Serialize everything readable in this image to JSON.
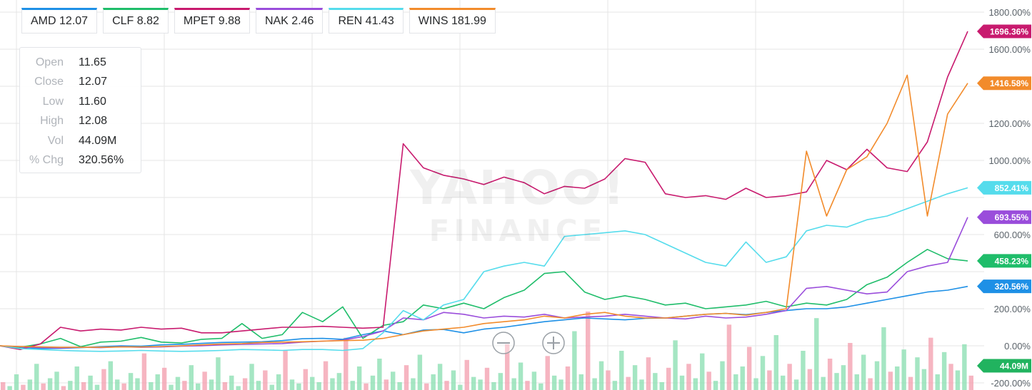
{
  "chart_data": {
    "type": "line",
    "y_axis": {
      "min": -200,
      "max": 1800,
      "unit": "%",
      "ticks": [
        -200,
        0,
        200,
        400,
        600,
        800,
        1000,
        1200,
        1400,
        1600,
        1800
      ],
      "tick_labels": [
        "-200.00%",
        "0.00%",
        "200.00%",
        "",
        "600.00%",
        "",
        "1000.00%",
        "1200.00%",
        "",
        "1600.00%",
        "1800.00%"
      ],
      "position": "right"
    },
    "grid": true,
    "series": [
      {
        "name": "AMD",
        "quote": "12.07",
        "color": "#1e90e6",
        "end_label": "320.56%",
        "values": [
          0,
          -8,
          -15,
          -14,
          -10,
          -5,
          0,
          -2,
          5,
          8,
          13,
          18,
          20,
          22,
          28,
          38,
          40,
          35,
          60,
          80,
          60,
          85,
          88,
          70,
          90,
          100,
          115,
          130,
          140,
          150,
          145,
          140,
          148,
          150,
          160,
          170,
          175,
          168,
          180,
          190,
          200,
          200,
          210,
          230,
          250,
          270,
          290,
          300,
          320.56
        ]
      },
      {
        "name": "CLF",
        "quote": "8.82",
        "color": "#1fbd6a",
        "end_label": "458.23%",
        "values": [
          0,
          -8,
          10,
          40,
          -5,
          20,
          25,
          45,
          20,
          15,
          35,
          40,
          120,
          40,
          60,
          180,
          130,
          210,
          40,
          110,
          130,
          220,
          200,
          230,
          200,
          260,
          300,
          390,
          400,
          290,
          250,
          270,
          250,
          220,
          230,
          200,
          210,
          220,
          240,
          210,
          230,
          220,
          250,
          330,
          370,
          450,
          520,
          470,
          458.23
        ]
      },
      {
        "name": "MPET",
        "quote": "9.88",
        "color": "#c81a6e",
        "end_label": "1696.36%",
        "values": [
          0,
          -20,
          10,
          100,
          80,
          90,
          85,
          100,
          90,
          95,
          70,
          70,
          80,
          90,
          100,
          100,
          105,
          100,
          95,
          100,
          1090,
          960,
          920,
          900,
          870,
          910,
          880,
          820,
          860,
          850,
          900,
          1010,
          990,
          820,
          800,
          810,
          790,
          850,
          800,
          810,
          830,
          1000,
          950,
          1060,
          960,
          940,
          1100,
          1450,
          1696.36
        ]
      },
      {
        "name": "NAK",
        "quote": "2.46",
        "color": "#9a4ddb",
        "end_label": "693.55%",
        "values": [
          0,
          -5,
          -10,
          -12,
          -8,
          -10,
          -5,
          -8,
          -6,
          -2,
          0,
          5,
          8,
          10,
          12,
          20,
          25,
          30,
          50,
          80,
          150,
          140,
          180,
          170,
          150,
          160,
          155,
          170,
          150,
          155,
          160,
          170,
          160,
          150,
          145,
          160,
          150,
          155,
          170,
          190,
          310,
          320,
          300,
          280,
          290,
          400,
          430,
          450,
          693.55
        ]
      },
      {
        "name": "REN",
        "quote": "41.43",
        "color": "#55dcec",
        "end_label": "852.41%",
        "values": [
          0,
          -15,
          -20,
          -25,
          -28,
          -30,
          -28,
          -25,
          -28,
          -30,
          -28,
          -25,
          -20,
          -22,
          -25,
          -20,
          -20,
          -25,
          -15,
          70,
          190,
          140,
          220,
          250,
          400,
          430,
          450,
          430,
          590,
          600,
          610,
          620,
          600,
          550,
          500,
          450,
          430,
          560,
          450,
          480,
          620,
          650,
          640,
          680,
          700,
          740,
          780,
          820,
          852.41
        ]
      },
      {
        "name": "WINS",
        "quote": "181.99",
        "color": "#f28b2b",
        "end_label": "1416.58%",
        "values": [
          0,
          -4,
          -6,
          -8,
          -8,
          -8,
          -6,
          -6,
          -4,
          0,
          5,
          10,
          12,
          18,
          20,
          22,
          25,
          28,
          30,
          40,
          60,
          80,
          90,
          100,
          120,
          130,
          140,
          160,
          150,
          170,
          180,
          160,
          150,
          150,
          160,
          170,
          175,
          165,
          180,
          200,
          1050,
          700,
          950,
          1020,
          1200,
          1460,
          700,
          1250,
          1416.58
        ]
      }
    ],
    "volume": {
      "last_label": "44.09M",
      "color_up": "#8ee0b4",
      "color_down": "#f4a3b1",
      "bars": [
        6,
        3,
        12,
        4,
        8,
        20,
        5,
        9,
        14,
        3,
        7,
        18,
        6,
        11,
        4,
        16,
        22,
        8,
        5,
        13,
        9,
        28,
        6,
        12,
        17,
        4,
        10,
        7,
        19,
        5,
        14,
        8,
        25,
        6,
        11,
        3,
        9,
        20,
        7,
        15,
        4,
        12,
        30,
        8,
        5,
        16,
        10,
        6,
        22,
        9,
        13,
        40,
        7,
        18,
        5,
        11,
        24,
        8,
        14,
        6,
        19,
        9,
        27,
        5,
        12,
        20,
        7,
        15,
        4,
        23,
        10,
        8,
        17,
        6,
        13,
        35,
        9,
        21,
        7,
        14,
        5,
        26,
        11,
        8,
        18,
        45,
        12,
        60,
        9,
        22,
        15,
        7,
        30,
        10,
        19,
        8,
        25,
        13,
        6,
        17,
        38,
        11,
        20,
        9,
        28,
        14,
        7,
        22,
        50,
        12,
        18,
        33,
        9,
        26,
        15,
        42,
        11,
        20,
        8,
        30,
        16,
        55,
        10,
        24,
        13,
        19,
        36,
        12,
        27,
        9,
        22,
        48,
        14,
        18,
        31,
        10,
        25,
        16,
        40,
        12,
        29,
        20,
        15,
        35,
        11
      ]
    },
    "x_labels": []
  },
  "legend": [
    {
      "name": "AMD",
      "value": "12.07",
      "color": "#1e90e6"
    },
    {
      "name": "CLF",
      "value": "8.82",
      "color": "#1fbd6a"
    },
    {
      "name": "MPET",
      "value": "9.88",
      "color": "#c81a6e"
    },
    {
      "name": "NAK",
      "value": "2.46",
      "color": "#9a4ddb"
    },
    {
      "name": "REN",
      "value": "41.43",
      "color": "#55dcec"
    },
    {
      "name": "WINS",
      "value": "181.99",
      "color": "#f28b2b"
    }
  ],
  "ohlc": {
    "rows": [
      {
        "label": "Open",
        "value": "11.65"
      },
      {
        "label": "Close",
        "value": "12.07"
      },
      {
        "label": "Low",
        "value": "11.60"
      },
      {
        "label": "High",
        "value": "12.08"
      },
      {
        "label": "Vol",
        "value": "44.09M"
      },
      {
        "label": "% Chg",
        "value": "320.56%"
      }
    ]
  },
  "watermark": {
    "top": "YAHOO!",
    "bottom": "FINANCE"
  }
}
